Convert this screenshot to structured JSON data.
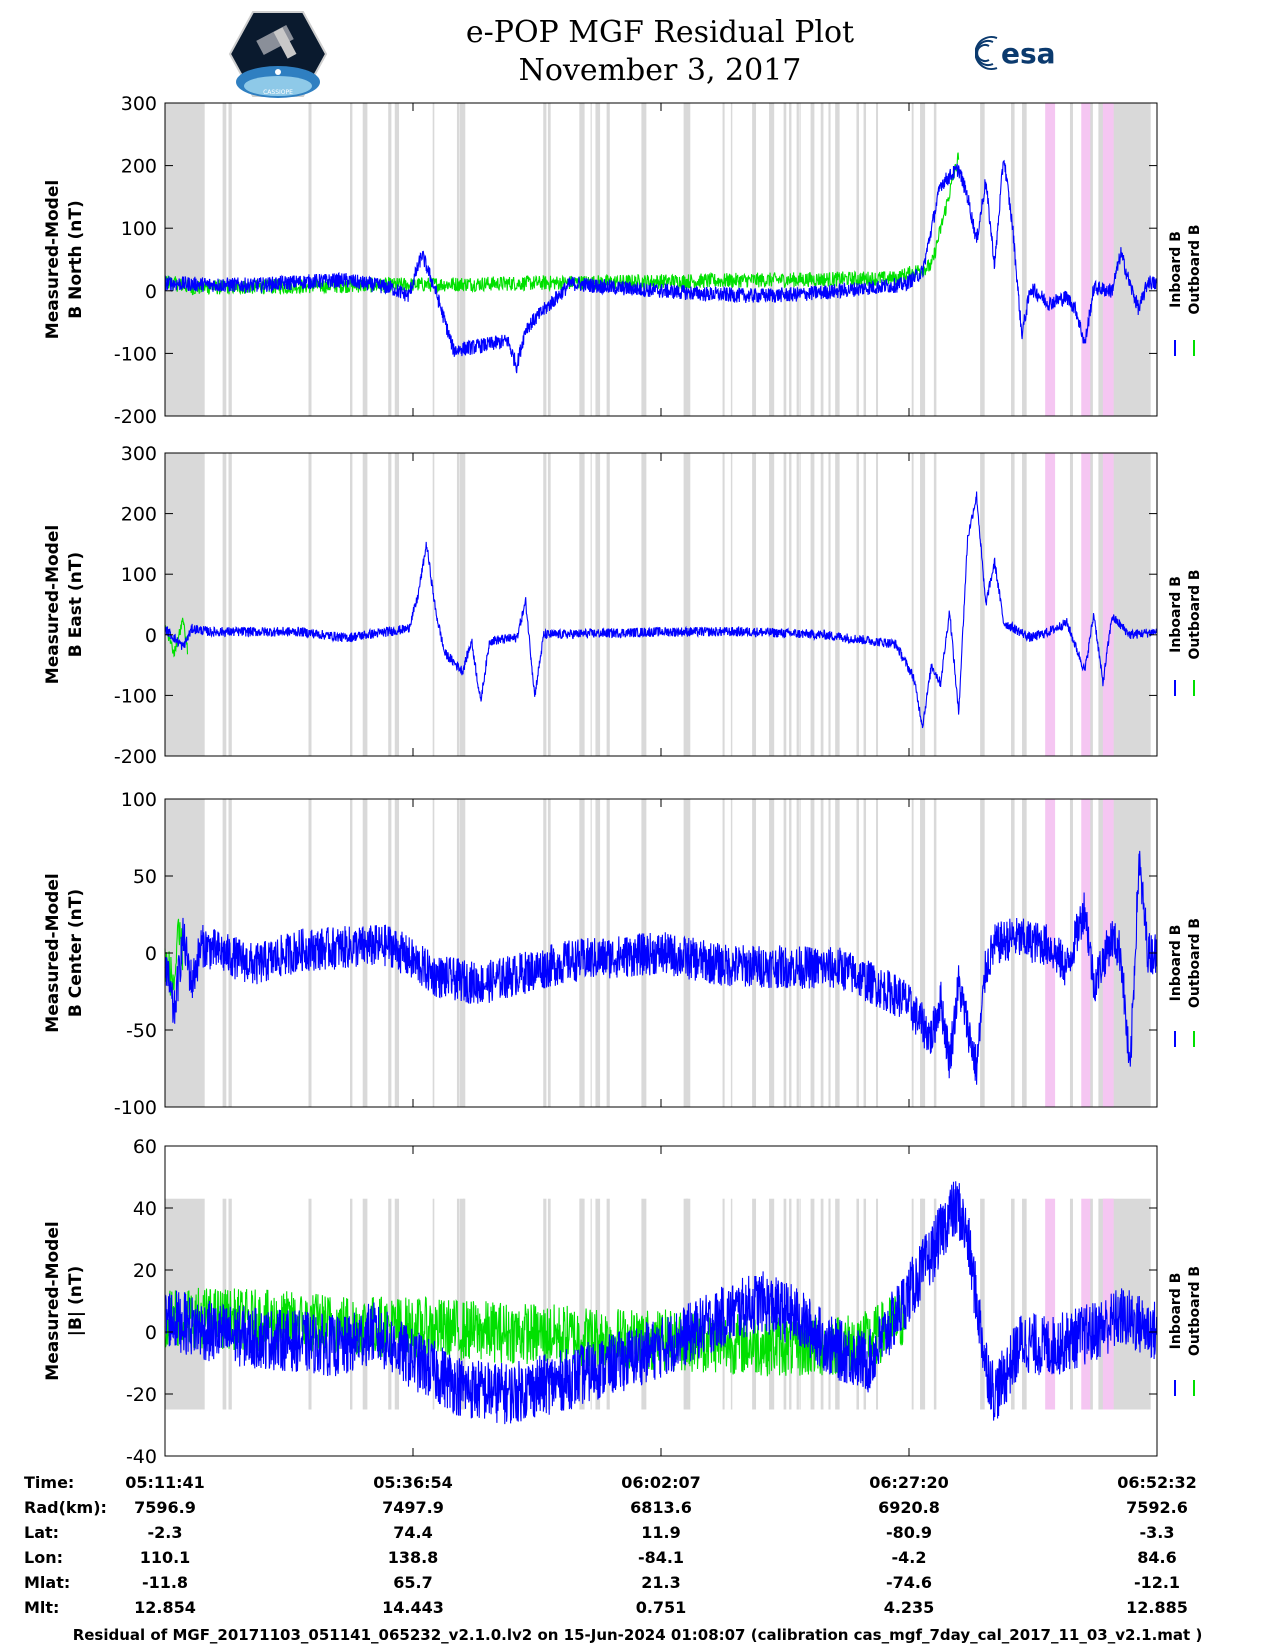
{
  "header": {
    "title_line1": "e-POP MGF Residual Plot",
    "title_line2": "November 3, 2017",
    "logo_left": "CASSIOPE",
    "logo_right": "esa"
  },
  "chart_data": {
    "type": "line",
    "x_ticks": [
      "05:11:41",
      "05:36:54",
      "06:02:07",
      "06:27:20",
      "06:52:32"
    ],
    "legend": [
      "Inboard B",
      "Outboard B"
    ],
    "colors": {
      "inboard": "#0000ff",
      "outboard": "#00e000",
      "gap_gray": "#d9d9d9",
      "gap_pink": "#f5c6f2"
    },
    "panels": [
      {
        "ylabel": [
          "Measured-Model",
          "B North (nT)"
        ],
        "ylim": [
          -200,
          300
        ],
        "yticks": [
          300,
          200,
          100,
          0,
          -100,
          -200
        ],
        "inboard": [
          [
            0,
            12
          ],
          [
            5,
            10
          ],
          [
            10,
            9
          ],
          [
            15,
            14
          ],
          [
            20,
            17
          ],
          [
            25,
            5
          ],
          [
            27,
            -8
          ],
          [
            28.5,
            58
          ],
          [
            30,
            0
          ],
          [
            32,
            -95
          ],
          [
            35,
            -88
          ],
          [
            38,
            -80
          ],
          [
            39,
            -120
          ],
          [
            40,
            -60
          ],
          [
            45,
            12
          ],
          [
            50,
            5
          ],
          [
            55,
            0
          ],
          [
            60,
            -5
          ],
          [
            65,
            -8
          ],
          [
            70,
            -6
          ],
          [
            75,
            0
          ],
          [
            78,
            5
          ],
          [
            82,
            10
          ],
          [
            84,
            30
          ],
          [
            86,
            170
          ],
          [
            88,
            195
          ],
          [
            89,
            150
          ],
          [
            90,
            80
          ],
          [
            91,
            175
          ],
          [
            92,
            40
          ],
          [
            93,
            215
          ],
          [
            94,
            100
          ],
          [
            95,
            -70
          ],
          [
            96,
            5
          ],
          [
            98,
            -20
          ],
          [
            100,
            -10
          ],
          [
            101,
            -30
          ],
          [
            102,
            -85
          ],
          [
            103,
            5
          ],
          [
            105,
            0
          ],
          [
            106,
            60
          ],
          [
            107,
            10
          ],
          [
            108,
            -30
          ],
          [
            109,
            15
          ],
          [
            110,
            10
          ]
        ],
        "outboard": [
          [
            0,
            15
          ],
          [
            3,
            5
          ],
          [
            81,
            20
          ],
          [
            85,
            40
          ],
          [
            88,
            215
          ]
        ],
        "noise": 12
      },
      {
        "ylabel": [
          "Measured-Model",
          "B East (nT)"
        ],
        "ylim": [
          -200,
          300
        ],
        "yticks": [
          300,
          200,
          100,
          0,
          -100,
          -200
        ],
        "inboard": [
          [
            0,
            10
          ],
          [
            2,
            -20
          ],
          [
            3,
            10
          ],
          [
            5,
            5
          ],
          [
            15,
            5
          ],
          [
            20,
            -5
          ],
          [
            27,
            10
          ],
          [
            28,
            60
          ],
          [
            29,
            150
          ],
          [
            30,
            40
          ],
          [
            31,
            -30
          ],
          [
            33,
            -60
          ],
          [
            34,
            -10
          ],
          [
            35,
            -110
          ],
          [
            36,
            -10
          ],
          [
            39,
            -5
          ],
          [
            40,
            55
          ],
          [
            41,
            -100
          ],
          [
            42,
            0
          ],
          [
            55,
            5
          ],
          [
            65,
            5
          ],
          [
            73,
            0
          ],
          [
            81,
            -15
          ],
          [
            83,
            -70
          ],
          [
            84,
            -150
          ],
          [
            85,
            -50
          ],
          [
            86,
            -80
          ],
          [
            87,
            40
          ],
          [
            88,
            -130
          ],
          [
            89,
            160
          ],
          [
            90,
            230
          ],
          [
            91,
            50
          ],
          [
            92,
            120
          ],
          [
            93,
            20
          ],
          [
            96,
            -5
          ],
          [
            98,
            5
          ],
          [
            100,
            20
          ],
          [
            102,
            -60
          ],
          [
            103,
            35
          ],
          [
            104,
            -80
          ],
          [
            105,
            30
          ],
          [
            107,
            0
          ],
          [
            110,
            5
          ]
        ],
        "outboard": [
          [
            0,
            15
          ],
          [
            1,
            -30
          ],
          [
            2,
            25
          ],
          [
            2.5,
            -25
          ]
        ],
        "noise": 8
      },
      {
        "ylabel": [
          "Measured-Model",
          "B Center (nT)"
        ],
        "ylim": [
          -100,
          100
        ],
        "yticks": [
          100,
          50,
          0,
          -50,
          -100
        ],
        "inboard": [
          [
            0,
            -5
          ],
          [
            1,
            -40
          ],
          [
            2,
            10
          ],
          [
            3,
            -20
          ],
          [
            4,
            5
          ],
          [
            10,
            -8
          ],
          [
            15,
            2
          ],
          [
            25,
            5
          ],
          [
            30,
            -15
          ],
          [
            35,
            -20
          ],
          [
            45,
            -5
          ],
          [
            55,
            0
          ],
          [
            62,
            -8
          ],
          [
            75,
            -10
          ],
          [
            82,
            -30
          ],
          [
            85,
            -55
          ],
          [
            86,
            -30
          ],
          [
            87,
            -70
          ],
          [
            88,
            -20
          ],
          [
            90,
            -75
          ],
          [
            91,
            -10
          ],
          [
            92,
            5
          ],
          [
            94,
            10
          ],
          [
            98,
            5
          ],
          [
            100,
            -10
          ],
          [
            102,
            30
          ],
          [
            103,
            -20
          ],
          [
            105,
            10
          ],
          [
            106,
            0
          ],
          [
            107,
            -80
          ],
          [
            108,
            60
          ],
          [
            109,
            0
          ],
          [
            110,
            0
          ]
        ],
        "outboard": [
          [
            0,
            -5
          ],
          [
            1,
            -20
          ],
          [
            1.5,
            10
          ],
          [
            2,
            0
          ]
        ],
        "noise": 14
      },
      {
        "ylabel": [
          "Measured-Model",
          "|B| (nT)"
        ],
        "ylim": [
          -40,
          60
        ],
        "yticks": [
          60,
          40,
          20,
          0,
          -20,
          -40
        ],
        "inboard": [
          [
            0,
            5
          ],
          [
            5,
            0
          ],
          [
            10,
            -2
          ],
          [
            15,
            -3
          ],
          [
            20,
            -5
          ],
          [
            23,
            0
          ],
          [
            27,
            -8
          ],
          [
            33,
            -18
          ],
          [
            38,
            -20
          ],
          [
            45,
            -15
          ],
          [
            55,
            -5
          ],
          [
            62,
            5
          ],
          [
            66,
            10
          ],
          [
            70,
            5
          ],
          [
            74,
            -5
          ],
          [
            78,
            -10
          ],
          [
            82,
            10
          ],
          [
            85,
            25
          ],
          [
            87,
            38
          ],
          [
            88,
            40
          ],
          [
            89,
            30
          ],
          [
            90,
            10
          ],
          [
            91,
            -10
          ],
          [
            92,
            -20
          ],
          [
            93,
            -15
          ],
          [
            95,
            -3
          ],
          [
            98,
            -5
          ],
          [
            103,
            0
          ],
          [
            106,
            5
          ],
          [
            110,
            0
          ]
        ],
        "outboard": [
          [
            0,
            5
          ],
          [
            2,
            5
          ],
          [
            72,
            -5
          ],
          [
            78,
            -3
          ],
          [
            82,
            5
          ]
        ],
        "noise": 10,
        "shade_top": 43,
        "shade_bottom": -25
      }
    ]
  },
  "ephemeris": {
    "labels": [
      "Time:",
      "Rad(km):",
      "Lat:",
      "Lon:",
      "Mlat:",
      "Mlt:"
    ],
    "columns": [
      [
        "05:11:41",
        "7596.9",
        "-2.3",
        "110.1",
        "-11.8",
        "12.854"
      ],
      [
        "05:36:54",
        "7497.9",
        "74.4",
        "138.8",
        "65.7",
        "14.443"
      ],
      [
        "06:02:07",
        "6813.6",
        "11.9",
        "-84.1",
        "21.3",
        "0.751"
      ],
      [
        "06:27:20",
        "6920.8",
        "-80.9",
        "-4.2",
        "-74.6",
        "4.235"
      ],
      [
        "06:52:32",
        "7592.6",
        "-3.3",
        "84.6",
        "-12.1",
        "12.885"
      ]
    ]
  },
  "footer": {
    "text": "Residual of MGF_20171103_051141_065232_v2.1.0.lv2 on 15-Jun-2024 01:08:07 (calibration cas_mgf_7day_cal_2017_11_03_v2.1.mat )"
  }
}
